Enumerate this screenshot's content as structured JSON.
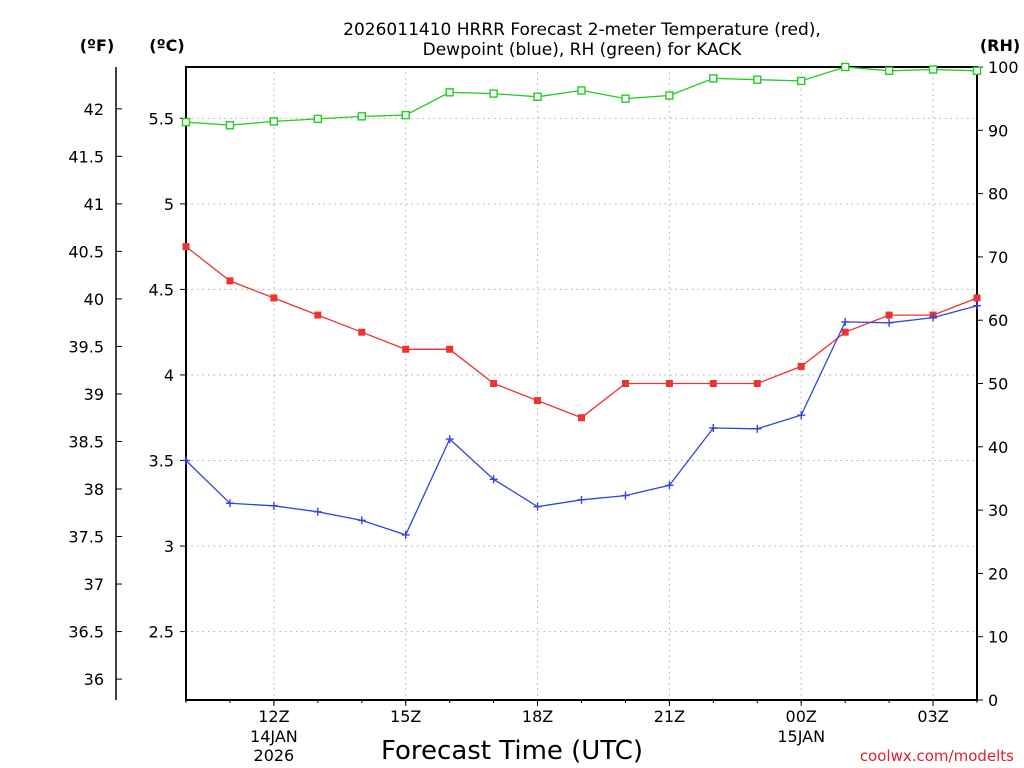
{
  "chart_data": {
    "type": "line",
    "title_lines": [
      "2026011410 HRRR Forecast 2-meter Temperature (red),",
      "Dewpoint (blue), RH (green) for KACK"
    ],
    "xlabel": "Forecast Time (UTC)",
    "credit": "coolwx.com/modelts",
    "units": {
      "left_f": "(ºF)",
      "left_c": "(ºC)",
      "right": "(RH)"
    },
    "x": [
      10,
      11,
      12,
      13,
      14,
      15,
      16,
      17,
      18,
      19,
      20,
      21,
      22,
      23,
      24,
      25,
      26,
      27,
      28
    ],
    "xlim": [
      10,
      28
    ],
    "x_ticks": [
      {
        "x": 12,
        "label": "12Z",
        "sub1": "14JAN",
        "sub2": "2026"
      },
      {
        "x": 15,
        "label": "15Z",
        "sub1": "",
        "sub2": ""
      },
      {
        "x": 18,
        "label": "18Z",
        "sub1": "",
        "sub2": ""
      },
      {
        "x": 21,
        "label": "21Z",
        "sub1": "",
        "sub2": ""
      },
      {
        "x": 24,
        "label": "00Z",
        "sub1": "15JAN",
        "sub2": ""
      },
      {
        "x": 27,
        "label": "03Z",
        "sub1": "",
        "sub2": ""
      }
    ],
    "y_c_lim": [
      2.1,
      5.8
    ],
    "y_c_ticks": [
      "2.5",
      "3",
      "3.5",
      "4",
      "4.5",
      "5",
      "5.5"
    ],
    "y_f_ticks": [
      "36",
      "36.5",
      "37",
      "37.5",
      "38",
      "38.5",
      "39",
      "39.5",
      "40",
      "40.5",
      "41",
      "41.5",
      "42"
    ],
    "y_rh_lim": [
      0,
      100
    ],
    "y_rh_ticks": [
      "0",
      "10",
      "20",
      "30",
      "40",
      "50",
      "60",
      "70",
      "80",
      "90",
      "100"
    ],
    "series": [
      {
        "name": "Temperature",
        "axis": "c",
        "color": "#ee3333",
        "marker": "filled-square",
        "values": [
          4.75,
          4.55,
          4.45,
          4.35,
          4.25,
          4.15,
          4.15,
          3.95,
          3.85,
          3.75,
          3.95,
          3.95,
          3.95,
          3.95,
          4.05,
          4.25,
          4.35,
          4.35,
          4.45
        ]
      },
      {
        "name": "Dewpoint",
        "axis": "c",
        "color": "#3344dd",
        "marker": "plus",
        "values": [
          3.5,
          3.25,
          3.235,
          3.2,
          3.15,
          3.065,
          3.625,
          3.39,
          3.23,
          3.27,
          3.295,
          3.355,
          3.69,
          3.685,
          3.765,
          4.31,
          4.305,
          4.335,
          4.405
        ]
      },
      {
        "name": "RH",
        "axis": "rh",
        "color": "#22cc22",
        "marker": "open-square",
        "values": [
          91.3,
          90.8,
          91.4,
          91.8,
          92.2,
          92.4,
          96.0,
          95.8,
          95.3,
          96.3,
          95.0,
          95.5,
          98.2,
          98.0,
          97.8,
          100,
          99.4,
          99.6,
          99.4
        ]
      }
    ]
  }
}
